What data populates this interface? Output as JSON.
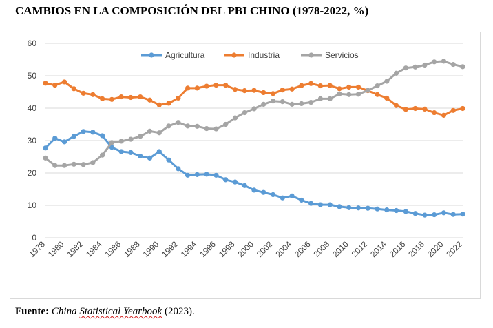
{
  "title": "CAMBIOS EN LA COMPOSICIÓN DEL PBI CHINO (1978-2022, %)",
  "source": {
    "label": "Fuente:",
    "title_part1": "China ",
    "title_part2": "Statistical Yearbook",
    "suffix": " (2023)."
  },
  "chart_data": {
    "type": "line",
    "title": "CAMBIOS EN LA COMPOSICIÓN DEL PBI CHINO (1978-2022, %)",
    "xlabel": "",
    "ylabel": "",
    "ylim": [
      0,
      60
    ],
    "yticks": [
      0,
      10,
      20,
      30,
      40,
      50,
      60
    ],
    "grid": true,
    "legend_position": "top-center",
    "x": [
      1978,
      1979,
      1980,
      1981,
      1982,
      1983,
      1984,
      1985,
      1986,
      1987,
      1988,
      1989,
      1990,
      1991,
      1992,
      1993,
      1994,
      1995,
      1996,
      1997,
      1998,
      1999,
      2000,
      2001,
      2002,
      2003,
      2004,
      2005,
      2006,
      2007,
      2008,
      2009,
      2010,
      2011,
      2012,
      2013,
      2014,
      2015,
      2016,
      2017,
      2018,
      2019,
      2020,
      2021,
      2022
    ],
    "xtick_labels": [
      "1978",
      "1980",
      "1982",
      "1984",
      "1986",
      "1988",
      "1990",
      "1992",
      "1994",
      "1996",
      "1998",
      "2000",
      "2002",
      "2004",
      "2006",
      "2008",
      "2010",
      "2012",
      "2014",
      "2016",
      "2018",
      "2020",
      "2022"
    ],
    "series": [
      {
        "name": "Agricultura",
        "color": "#5b9bd5",
        "values": [
          27.7,
          30.7,
          29.6,
          31.3,
          32.8,
          32.6,
          31.5,
          27.9,
          26.6,
          26.3,
          25.2,
          24.6,
          26.6,
          24.0,
          21.3,
          19.3,
          19.5,
          19.6,
          19.3,
          17.9,
          17.2,
          16.1,
          14.7,
          14.0,
          13.3,
          12.3,
          12.9,
          11.6,
          10.6,
          10.2,
          10.2,
          9.6,
          9.3,
          9.2,
          9.1,
          8.9,
          8.6,
          8.4,
          8.1,
          7.5,
          7.0,
          7.1,
          7.7,
          7.2,
          7.3
        ]
      },
      {
        "name": "Industria",
        "color": "#ed7d31",
        "values": [
          47.7,
          47.1,
          48.1,
          46.0,
          44.6,
          44.2,
          42.9,
          42.7,
          43.5,
          43.3,
          43.5,
          42.5,
          41.0,
          41.5,
          43.1,
          46.2,
          46.2,
          46.8,
          47.1,
          47.1,
          45.8,
          45.4,
          45.5,
          44.8,
          44.5,
          45.6,
          45.9,
          47.0,
          47.6,
          46.9,
          47.0,
          46.0,
          46.5,
          46.5,
          45.4,
          44.2,
          43.1,
          40.8,
          39.6,
          39.9,
          39.7,
          38.6,
          37.8,
          39.3,
          39.9
        ]
      },
      {
        "name": "Servicios",
        "color": "#a5a5a5",
        "values": [
          24.6,
          22.3,
          22.3,
          22.7,
          22.6,
          23.2,
          25.5,
          29.4,
          29.8,
          30.4,
          31.3,
          32.9,
          32.4,
          34.5,
          35.6,
          34.5,
          34.4,
          33.7,
          33.6,
          35.0,
          37.0,
          38.6,
          39.8,
          41.2,
          42.2,
          42.0,
          41.2,
          41.4,
          41.8,
          42.9,
          42.9,
          44.4,
          44.2,
          44.3,
          45.5,
          46.9,
          48.3,
          50.8,
          52.4,
          52.7,
          53.3,
          54.3,
          54.5,
          53.5,
          52.8
        ]
      }
    ]
  }
}
